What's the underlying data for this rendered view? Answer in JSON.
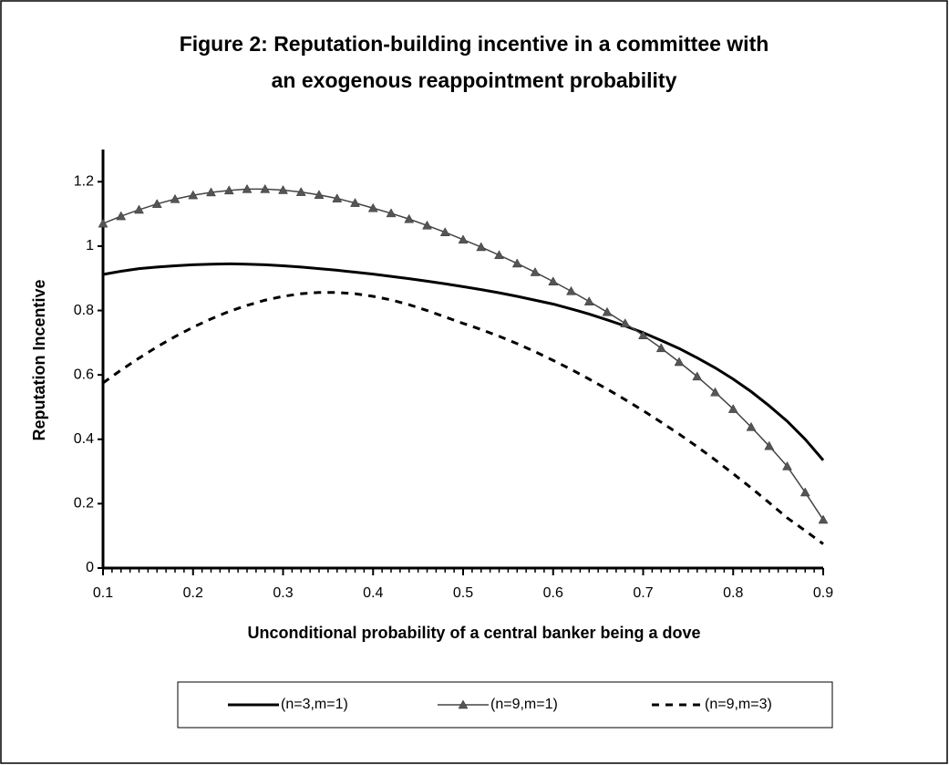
{
  "chart_data": {
    "type": "line",
    "title": "Figure 2: Reputation-building incentive in a committee with",
    "subtitle": "an exogenous reappointment probability",
    "xlabel": "Unconditional probability of a central banker being a dove",
    "ylabel": "Reputation Incentive",
    "xlim": [
      0.1,
      0.9
    ],
    "ylim": [
      0,
      1.3
    ],
    "xticks": [
      0.1,
      0.2,
      0.3,
      0.4,
      0.5,
      0.6,
      0.7,
      0.8,
      0.9
    ],
    "yticks": [
      0,
      0.2,
      0.4,
      0.6,
      0.8,
      1,
      1.2
    ],
    "grid": false,
    "legend": "bottom",
    "x": [
      0.1,
      0.12,
      0.14,
      0.16,
      0.18,
      0.2,
      0.22,
      0.24,
      0.26,
      0.28,
      0.3,
      0.32,
      0.34,
      0.36,
      0.38,
      0.4,
      0.42,
      0.44,
      0.46,
      0.48,
      0.5,
      0.52,
      0.54,
      0.56,
      0.58,
      0.6,
      0.62,
      0.64,
      0.66,
      0.68,
      0.7,
      0.72,
      0.74,
      0.76,
      0.78,
      0.8,
      0.82,
      0.84,
      0.86,
      0.88,
      0.9
    ],
    "series": [
      {
        "name": "(n=3,m=1)",
        "color": "#000000",
        "line_style": "solid",
        "marker": "none",
        "values": [
          0.912,
          0.922,
          0.93,
          0.935,
          0.939,
          0.942,
          0.944,
          0.945,
          0.944,
          0.942,
          0.939,
          0.935,
          0.93,
          0.925,
          0.919,
          0.913,
          0.906,
          0.899,
          0.891,
          0.883,
          0.874,
          0.865,
          0.855,
          0.844,
          0.832,
          0.82,
          0.805,
          0.789,
          0.771,
          0.752,
          0.731,
          0.707,
          0.682,
          0.653,
          0.622,
          0.587,
          0.548,
          0.504,
          0.456,
          0.4,
          0.335
        ]
      },
      {
        "name": "(n=9,m=1)",
        "color": "#444444",
        "line_style": "solid",
        "marker": "triangle",
        "values": [
          1.07,
          1.093,
          1.113,
          1.131,
          1.146,
          1.158,
          1.167,
          1.173,
          1.177,
          1.177,
          1.174,
          1.168,
          1.159,
          1.148,
          1.134,
          1.118,
          1.102,
          1.084,
          1.064,
          1.043,
          1.02,
          0.997,
          0.972,
          0.946,
          0.919,
          0.89,
          0.86,
          0.828,
          0.795,
          0.76,
          0.723,
          0.683,
          0.64,
          0.595,
          0.546,
          0.494,
          0.438,
          0.379,
          0.316,
          0.235,
          0.15
        ]
      },
      {
        "name": "(n=9,m=3)",
        "color": "#000000",
        "line_style": "dashed",
        "marker": "none",
        "values": [
          0.575,
          0.615,
          0.652,
          0.687,
          0.719,
          0.748,
          0.774,
          0.797,
          0.816,
          0.832,
          0.844,
          0.852,
          0.856,
          0.856,
          0.852,
          0.844,
          0.833,
          0.818,
          0.8,
          0.78,
          0.76,
          0.741,
          0.72,
          0.697,
          0.672,
          0.645,
          0.617,
          0.587,
          0.556,
          0.523,
          0.489,
          0.453,
          0.416,
          0.377,
          0.336,
          0.293,
          0.249,
          0.203,
          0.156,
          0.116,
          0.075
        ]
      }
    ]
  }
}
